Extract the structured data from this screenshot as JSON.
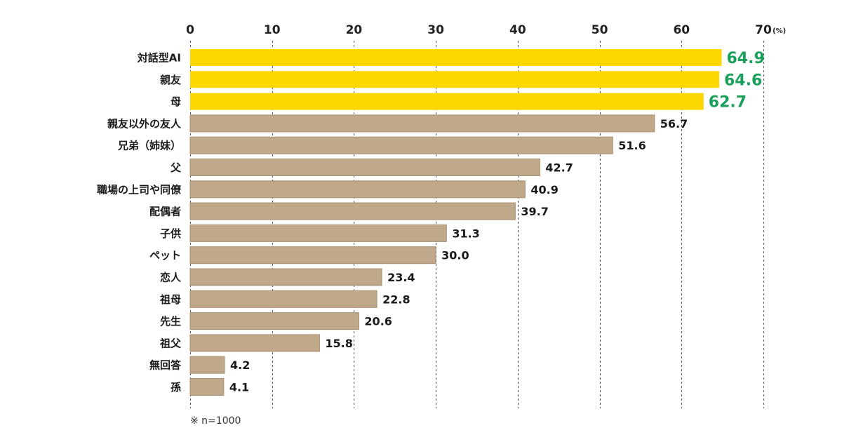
{
  "chart_data": {
    "type": "bar",
    "orientation": "horizontal",
    "categories": [
      "対話型AI",
      "親友",
      "母",
      "親友以外の友人",
      "兄弟（姉妹）",
      "父",
      "職場の上司や同僚",
      "配偶者",
      "子供",
      "ペット",
      "恋人",
      "祖母",
      "先生",
      "祖父",
      "無回答",
      "孫"
    ],
    "values": [
      64.9,
      64.6,
      62.7,
      56.7,
      51.6,
      42.7,
      40.9,
      39.7,
      31.3,
      30.0,
      23.4,
      22.8,
      20.6,
      15.8,
      4.2,
      4.1
    ],
    "value_labels": [
      "64.9",
      "64.6",
      "62.7",
      "56.7",
      "51.6",
      "42.7",
      "40.9",
      "39.7",
      "31.3",
      "30.0",
      "23.4",
      "22.8",
      "20.6",
      "15.8",
      "4.2",
      "4.1"
    ],
    "highlighted": [
      true,
      true,
      true,
      false,
      false,
      false,
      false,
      false,
      false,
      false,
      false,
      false,
      false,
      false,
      false,
      false
    ],
    "xlim": [
      0,
      70
    ],
    "xticks": [
      "0",
      "10",
      "20",
      "30",
      "40",
      "50",
      "60",
      "70"
    ],
    "xtick_values": [
      0,
      10,
      20,
      30,
      40,
      50,
      60,
      70
    ],
    "x_unit": "(%)",
    "xaxis_position": "top",
    "grid": "vertical dashed",
    "title": "",
    "xlabel": "",
    "ylabel": "",
    "note": "※ n=1000",
    "colors": {
      "highlight_bar": "#FFD700",
      "normal_bar": "#BFA98A",
      "normal_bar_border": "#A8906E",
      "highlight_label": "#1AA05A",
      "normal_label": "#1A1A1A"
    }
  }
}
